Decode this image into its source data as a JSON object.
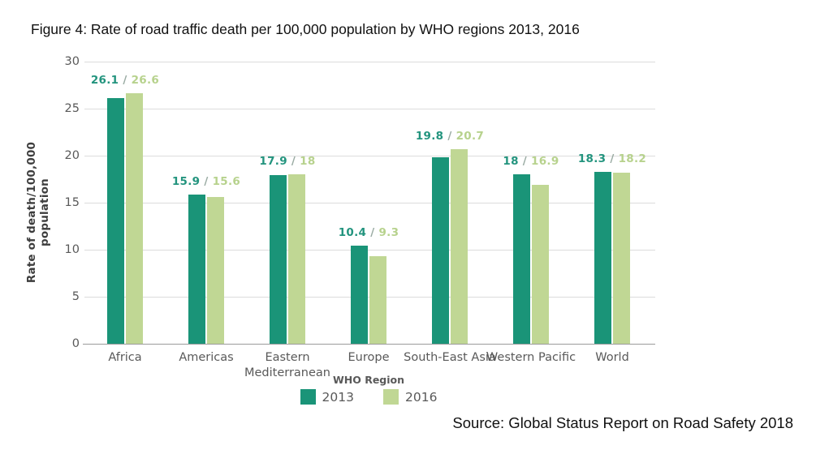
{
  "title": "Figure 4: Rate of road traffic death per 100,000 population by WHO regions 2013, 2016",
  "source": "Source: Global Status Report on Road Safety 2018",
  "chart_data": {
    "type": "bar",
    "title": "Figure 4: Rate of road traffic death per 100,000 population by WHO regions 2013, 2016",
    "categories": [
      "Africa",
      "Americas",
      "Eastern Mediterranean",
      "Europe",
      "South-East Asia",
      "Western Pacific",
      "World"
    ],
    "series": [
      {
        "name": "2013",
        "color": "#1A9478",
        "label_color": "#23947E",
        "values": [
          26.1,
          15.9,
          17.9,
          10.4,
          19.8,
          18,
          18.3
        ],
        "display_values": [
          "26.1",
          "15.9",
          "17.9",
          "10.4",
          "19.8",
          "18",
          "18.3"
        ]
      },
      {
        "name": "2016",
        "color": "#C0D794",
        "label_color": "#B7D28D",
        "values": [
          26.6,
          15.6,
          18,
          9.3,
          20.7,
          16.9,
          18.2
        ],
        "display_values": [
          "26.6",
          "15.6",
          "18",
          "9.3",
          "20.7",
          "16.9",
          "18.2"
        ]
      }
    ],
    "value_label_separator": " / ",
    "separator_color": "#9AABA3",
    "ylabel": "Rate of death/100,000 population",
    "xlabel": "",
    "yticks": [
      0,
      5,
      10,
      15,
      20,
      25,
      30
    ],
    "ylim": [
      0,
      30
    ],
    "grid": true,
    "gridline_color": "#DCDCDC",
    "baseline_color": "#9B9B9B",
    "tick_text_color": "#595959",
    "legend_title": "WHO Region",
    "legend_position": "bottom"
  }
}
